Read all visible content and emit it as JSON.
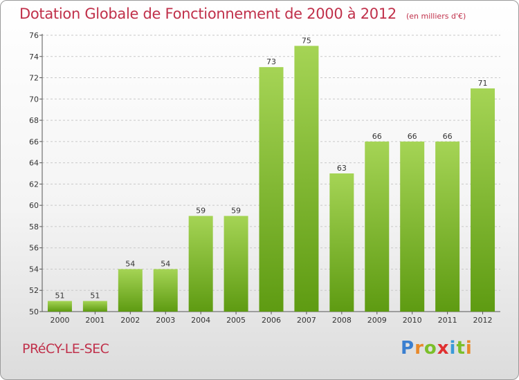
{
  "title": "Dotation Globale de Fonctionnement de 2000 à 2012",
  "units": "(en milliers d'€)",
  "commune": "PRéCY-LE-SEC",
  "brand": {
    "letters": [
      "P",
      "r",
      "o",
      "x",
      "i",
      "t",
      "i"
    ],
    "colors": [
      "#3a7fd0",
      "#e8892a",
      "#7bbf2a",
      "#e03030",
      "#3a9ad8",
      "#7bbf2a",
      "#e8892a"
    ]
  },
  "colors": {
    "bar_light": "#a5d455",
    "bar_dark": "#5e9b12",
    "title": "#c0304a"
  },
  "chart_data": {
    "type": "bar",
    "categories": [
      "2000",
      "2001",
      "2002",
      "2003",
      "2004",
      "2005",
      "2006",
      "2007",
      "2008",
      "2009",
      "2010",
      "2011",
      "2012"
    ],
    "values": [
      51,
      51,
      54,
      54,
      59,
      59,
      73,
      75,
      63,
      66,
      66,
      66,
      71
    ],
    "ylim": [
      50,
      76
    ],
    "yticks": [
      50,
      52,
      54,
      56,
      58,
      60,
      62,
      64,
      66,
      68,
      70,
      72,
      74,
      76
    ],
    "grid": true
  }
}
